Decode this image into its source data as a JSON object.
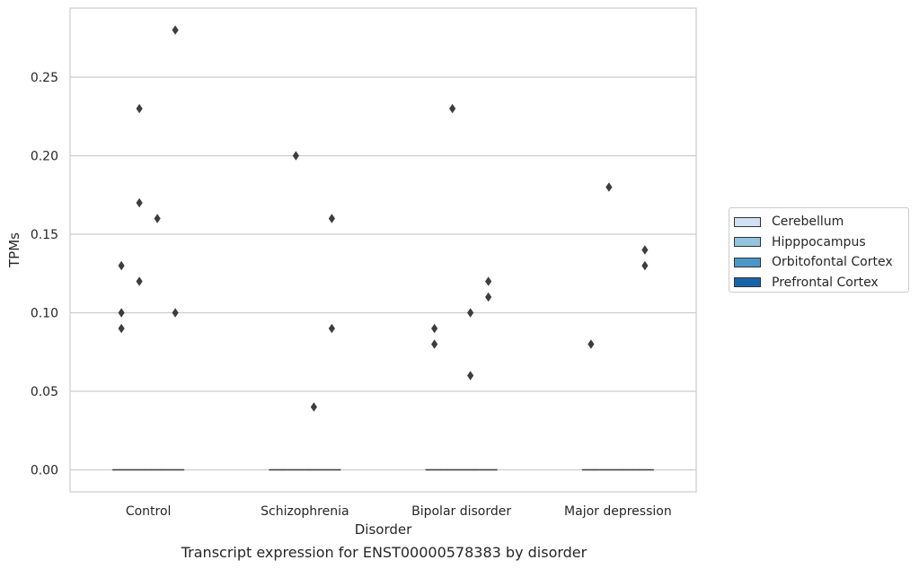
{
  "chart_data": {
    "type": "box",
    "title": "Transcript expression for ENST00000578383 by disorder",
    "xlabel": "Disorder",
    "ylabel": "TPMs",
    "categories": [
      "Control",
      "Schizophrenia",
      "Bipolar disorder",
      "Major depression"
    ],
    "ylim": [
      -0.014,
      0.294
    ],
    "yticks": [
      "0.00",
      "0.05",
      "0.10",
      "0.15",
      "0.20",
      "0.25"
    ],
    "grid": true,
    "legend_position": "right",
    "series": [
      {
        "name": "Cerebellum",
        "color": "#d0e1f2",
        "median": [
          0,
          0,
          0,
          0
        ],
        "outliers": [
          [
            0.13,
            0.1,
            0.09
          ],
          [],
          [
            0.09,
            0.08
          ],
          [
            0.08
          ]
        ]
      },
      {
        "name": "Hipppocampus",
        "color": "#94c4df",
        "median": [
          0,
          0,
          0,
          0
        ],
        "outliers": [
          [
            0.23,
            0.17,
            0.12
          ],
          [
            0.2
          ],
          [
            0.23
          ],
          [
            0.18
          ]
        ]
      },
      {
        "name": "Orbitofontal Cortex",
        "color": "#4a98c9",
        "median": [
          0,
          0,
          0,
          0
        ],
        "outliers": [
          [
            0.16
          ],
          [
            0.04
          ],
          [
            0.1,
            0.06
          ],
          []
        ]
      },
      {
        "name": "Prefrontal Cortex",
        "color": "#1764ab",
        "median": [
          0,
          0,
          0,
          0
        ],
        "outliers": [
          [
            0.28,
            0.1
          ],
          [
            0.16,
            0.09
          ],
          [
            0.12,
            0.11
          ],
          [
            0.14,
            0.13
          ]
        ]
      }
    ]
  }
}
